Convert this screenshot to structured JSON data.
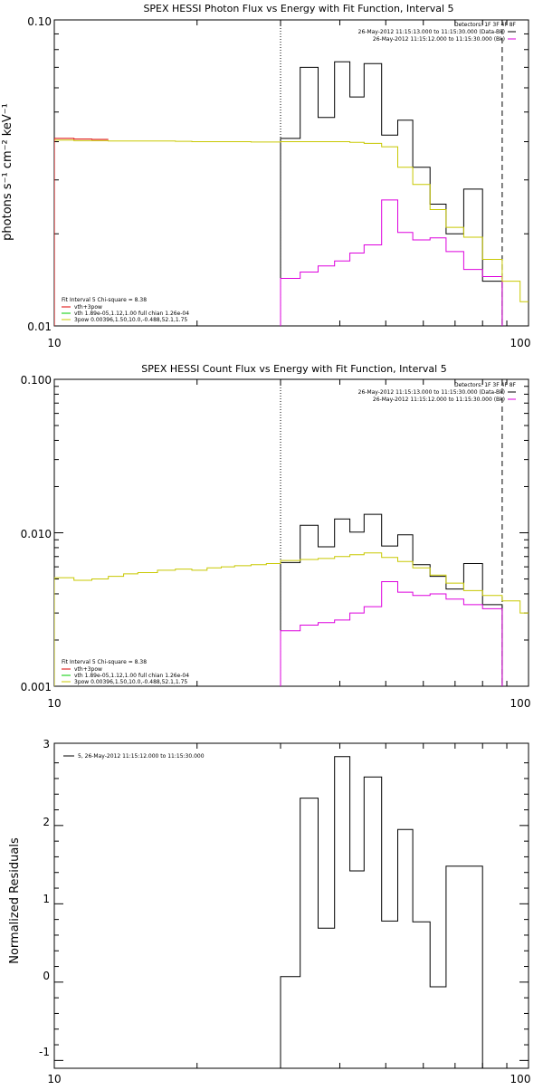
{
  "chart_data": [
    {
      "type": "line",
      "title": "SPEX HESSI Photon Flux vs Energy with Fit Function, Interval 5",
      "ylabel": "photons s⁻¹ cm⁻² keV⁻¹",
      "xlabel": "",
      "xscale": "log",
      "yscale": "log",
      "xlim": [
        10,
        100
      ],
      "ylim": [
        0.01,
        0.1
      ],
      "x_tick_labels": [
        "10",
        "100"
      ],
      "y_tick_labels": [
        "0.01",
        "0.10"
      ],
      "vlines": [
        {
          "x": 30.0,
          "style": "dotted"
        },
        {
          "x": 88.0,
          "style": "dashed"
        }
      ],
      "legend_topright": {
        "header": "Detectors: 1F 3F 4F 8F",
        "lines": [
          "26-May-2012 11:15:13.000 to 11:15:30.000 (Data-Bk)",
          "26-May-2012 11:15:12.000 to 11:15:30.000 (Bk)"
        ],
        "colors": [
          "#000000",
          "#dd00dd"
        ]
      },
      "legend_bottomleft": {
        "header": "Fit Interval 5   Chi-square = 8.38",
        "lines": [
          "vth+3pow",
          "vth 1.89e-05,1.12,1.00  full chian 1.26e-04",
          "3pow 0.00396,1.50,10.0,-0.488,52.1,1.75"
        ],
        "colors": [
          "#dd0000",
          "#00cc00",
          "#c8c800"
        ]
      },
      "series": [
        {
          "color": "#000000",
          "edges": [
            30,
            33,
            36,
            39,
            42,
            45,
            49,
            53,
            57,
            62,
            67,
            73,
            80,
            88
          ],
          "values": [
            0.041,
            0.07,
            0.048,
            0.073,
            0.056,
            0.072,
            0.042,
            0.047,
            0.033,
            0.025,
            0.02,
            0.028,
            0.014
          ]
        },
        {
          "color": "#dd00dd",
          "edges": [
            30,
            33,
            36,
            39,
            42,
            45,
            49,
            53,
            57,
            62,
            67,
            73,
            80,
            88
          ],
          "values": [
            0.0143,
            0.015,
            0.0157,
            0.0163,
            0.0173,
            0.0184,
            0.0258,
            0.0202,
            0.0191,
            0.0194,
            0.0175,
            0.0153,
            0.0145
          ]
        },
        {
          "color": "#c8c800",
          "edges": [
            10,
            11,
            12,
            13,
            14,
            15,
            16.5,
            18,
            19.5,
            21,
            22.5,
            24,
            26,
            28,
            30,
            33,
            36,
            39,
            42,
            45,
            49,
            53,
            57,
            62,
            67,
            73,
            80,
            88,
            96,
            100
          ],
          "values": [
            0.0405,
            0.0403,
            0.0403,
            0.0402,
            0.0402,
            0.0402,
            0.0402,
            0.0401,
            0.04,
            0.04,
            0.04,
            0.04,
            0.0399,
            0.0399,
            0.04,
            0.04,
            0.04,
            0.04,
            0.0398,
            0.0395,
            0.0385,
            0.033,
            0.029,
            0.024,
            0.021,
            0.0195,
            0.0165,
            0.014,
            0.012
          ]
        },
        {
          "color": "#dd0000",
          "edges": [
            10,
            11,
            12,
            13
          ],
          "values": [
            0.041,
            0.0408,
            0.0407
          ]
        }
      ]
    },
    {
      "type": "line",
      "title": "SPEX HESSI Count Flux vs Energy with Fit Function, Interval 5",
      "ylabel": "",
      "xlabel": "",
      "xscale": "log",
      "yscale": "log",
      "xlim": [
        10,
        100
      ],
      "ylim": [
        0.001,
        0.1
      ],
      "x_tick_labels": [
        "10",
        "100"
      ],
      "y_tick_labels": [
        "0.001",
        "0.010",
        "0.100"
      ],
      "vlines": [
        {
          "x": 30.0,
          "style": "dotted"
        },
        {
          "x": 88.0,
          "style": "dashed"
        }
      ],
      "legend_topright": {
        "header": "Detectors: 1F 3F 4F 8F",
        "lines": [
          "26-May-2012 11:15:13.000 to 11:15:30.000 (Data-Bk)",
          "26-May-2012 11:15:12.000 to 11:15:30.000 (Bk)"
        ],
        "colors": [
          "#000000",
          "#dd00dd"
        ]
      },
      "legend_bottomleft": {
        "header": "Fit Interval 5   Chi-square = 8.38",
        "lines": [
          "vth+3pow",
          "vth 1.89e-05,1.12,1.00  full chian 1.26e-04",
          "3pow 0.00396,1.50,10.0,-0.488,52.1,1.75"
        ],
        "colors": [
          "#dd0000",
          "#00cc00",
          "#c8c800"
        ]
      },
      "series": [
        {
          "color": "#000000",
          "edges": [
            30,
            33,
            36,
            39,
            42,
            45,
            49,
            53,
            57,
            62,
            67,
            73,
            80,
            88
          ],
          "values": [
            0.0064,
            0.0112,
            0.0081,
            0.0123,
            0.0101,
            0.0132,
            0.0082,
            0.0097,
            0.0062,
            0.0052,
            0.0043,
            0.0063,
            0.0034
          ]
        },
        {
          "color": "#dd00dd",
          "edges": [
            30,
            33,
            36,
            39,
            42,
            45,
            49,
            53,
            57,
            62,
            67,
            73,
            80,
            88
          ],
          "values": [
            0.0023,
            0.0025,
            0.0026,
            0.0027,
            0.003,
            0.0033,
            0.0048,
            0.0041,
            0.0039,
            0.004,
            0.0037,
            0.0034,
            0.0032
          ]
        },
        {
          "color": "#c8c800",
          "edges": [
            10,
            11,
            12,
            13,
            14,
            15,
            16.5,
            18,
            19.5,
            21,
            22.5,
            24,
            26,
            28,
            30,
            33,
            36,
            39,
            42,
            45,
            49,
            53,
            57,
            62,
            67,
            73,
            80,
            88,
            96,
            100
          ],
          "values": [
            0.0051,
            0.0049,
            0.005,
            0.0052,
            0.0054,
            0.0055,
            0.0057,
            0.0058,
            0.0057,
            0.0059,
            0.006,
            0.0061,
            0.0062,
            0.0063,
            0.0066,
            0.0067,
            0.0068,
            0.007,
            0.0072,
            0.0074,
            0.0069,
            0.0065,
            0.0059,
            0.0053,
            0.0047,
            0.0042,
            0.0039,
            0.0036,
            0.003
          ]
        }
      ]
    },
    {
      "type": "line",
      "title": "",
      "ylabel": "Normalized Residuals",
      "xlabel": "",
      "xscale": "log",
      "yscale": "linear",
      "xlim": [
        10,
        100
      ],
      "ylim": [
        -1.1,
        3.05
      ],
      "x_tick_labels": [
        "10",
        "100"
      ],
      "y_ticks": [
        -1,
        0,
        1,
        2,
        3
      ],
      "y_tick_labels": [
        "-1",
        "0",
        "1",
        "2",
        "3"
      ],
      "legend_topleft": {
        "lines": [
          "5, 26-May-2012 11:15:12.000 to 11:15:30.000"
        ],
        "colors": [
          "#000000"
        ]
      },
      "series": [
        {
          "color": "#000000",
          "edges": [
            30,
            33,
            36,
            39,
            42,
            45,
            49,
            53,
            57,
            62,
            67,
            73,
            80,
            88
          ],
          "values": [
            0.07,
            2.35,
            0.69,
            2.88,
            1.42,
            2.62,
            0.78,
            1.95,
            0.77,
            -0.06,
            1.48,
            1.48,
            -1.1
          ]
        }
      ]
    }
  ]
}
